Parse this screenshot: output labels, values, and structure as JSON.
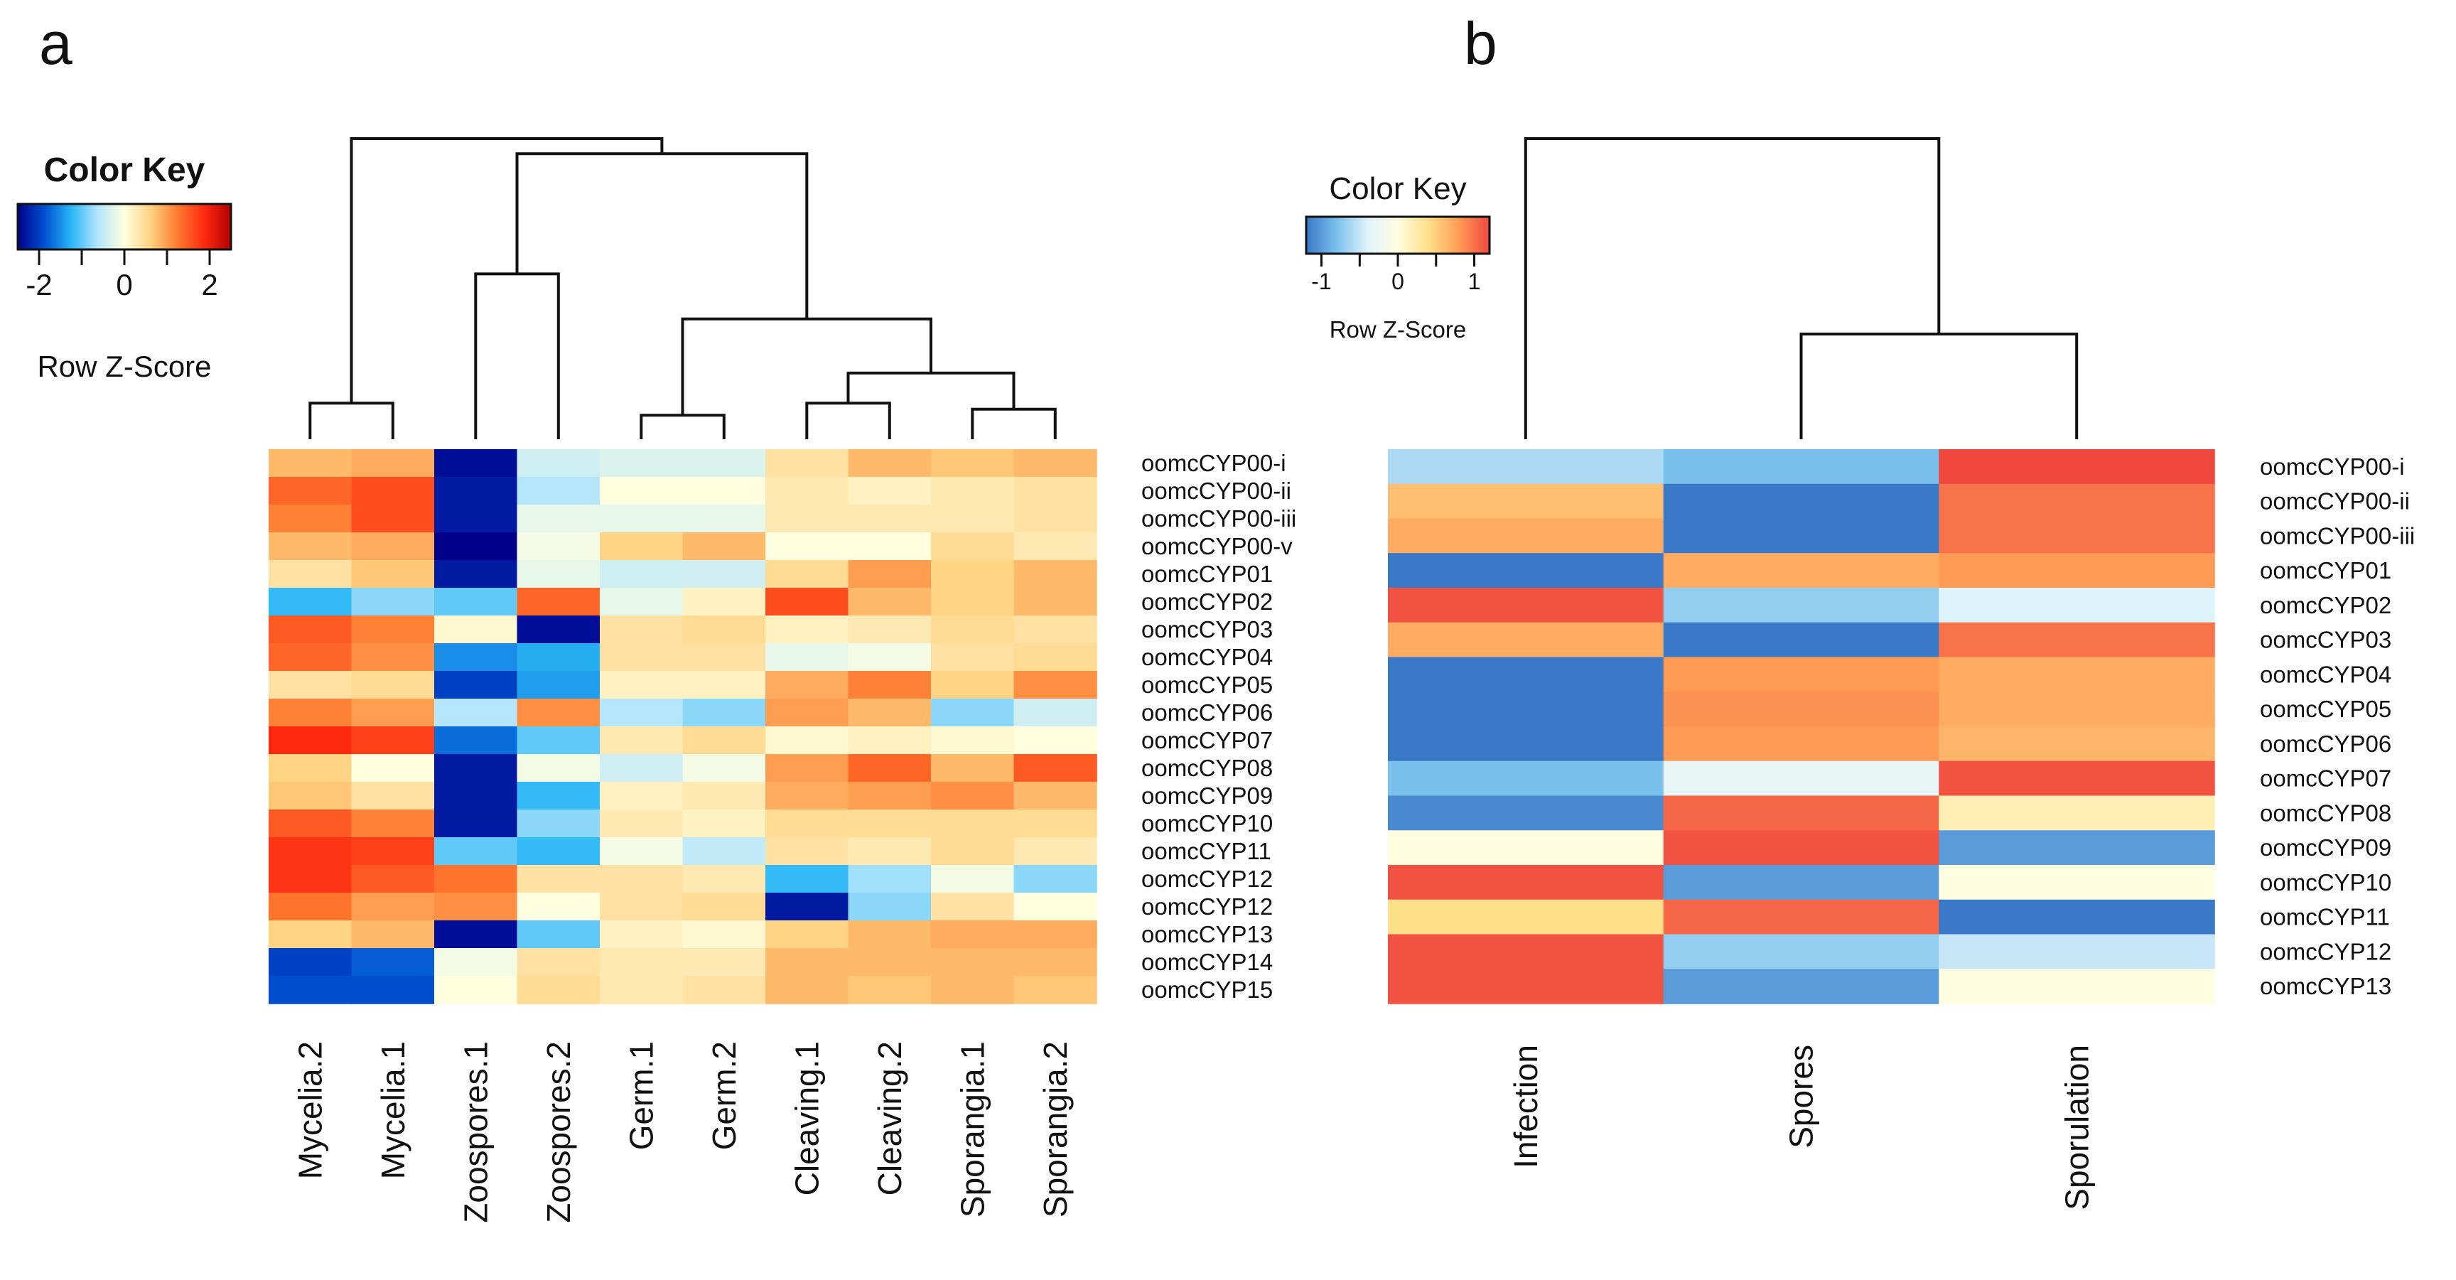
{
  "chart_data": [
    {
      "panel": "a",
      "type": "heatmap",
      "color_key": {
        "title": "Color Key",
        "xlabel": "Row Z-Score",
        "ticks": [
          "-2",
          "0",
          "2"
        ],
        "tick_values": [
          -2,
          0,
          2
        ],
        "range": [
          -2.5,
          2.5
        ],
        "colors": [
          "#00008b",
          "#0050d0",
          "#29b6f6",
          "#b3e5fc",
          "#ffffe0",
          "#ffd280",
          "#ff7a30",
          "#ff2a10",
          "#b00000"
        ]
      },
      "columns": [
        "Mycelia.2",
        "Mycelia.1",
        "Zoospores.1",
        "Zoospores.2",
        "Germ.1",
        "Germ.2",
        "Cleaving.1",
        "Cleaving.2",
        "Sporangia.1",
        "Sporangia.2"
      ],
      "rows": [
        "oomcCYP00-i",
        "oomcCYP00-ii",
        "oomcCYP00-iii",
        "oomcCYP00-v",
        "oomcCYP01",
        "oomcCYP02",
        "oomcCYP03",
        "oomcCYP04",
        "oomcCYP05",
        "oomcCYP06",
        "oomcCYP07",
        "oomcCYP08",
        "oomcCYP09",
        "oomcCYP10",
        "oomcCYP11",
        "oomcCYP12",
        "oomcCYP12",
        "oomcCYP13",
        "oomcCYP14",
        "oomcCYP15"
      ],
      "values": [
        [
          0.8,
          0.9,
          -2.4,
          -0.4,
          -0.3,
          -0.3,
          0.4,
          0.8,
          0.7,
          0.8
        ],
        [
          1.4,
          1.6,
          -2.3,
          -0.6,
          0.0,
          0.0,
          0.3,
          0.2,
          0.3,
          0.4
        ],
        [
          1.2,
          1.6,
          -2.3,
          -0.2,
          -0.2,
          -0.2,
          0.3,
          0.3,
          0.3,
          0.4
        ],
        [
          0.8,
          0.9,
          -2.5,
          -0.1,
          0.6,
          0.8,
          0.0,
          0.0,
          0.5,
          0.3
        ],
        [
          0.4,
          0.7,
          -2.3,
          -0.2,
          -0.4,
          -0.4,
          0.5,
          1.0,
          0.6,
          0.8
        ],
        [
          -1.2,
          -0.8,
          -1.0,
          1.4,
          -0.2,
          0.2,
          1.6,
          0.8,
          0.6,
          0.8
        ],
        [
          1.5,
          1.2,
          0.1,
          -2.4,
          0.4,
          0.5,
          0.2,
          0.3,
          0.5,
          0.4
        ],
        [
          1.4,
          1.1,
          -1.5,
          -1.3,
          0.4,
          0.4,
          -0.2,
          -0.1,
          0.4,
          0.5
        ],
        [
          0.4,
          0.5,
          -2.0,
          -1.4,
          0.2,
          0.2,
          0.9,
          1.2,
          0.6,
          1.1
        ],
        [
          1.2,
          1.0,
          -0.6,
          1.1,
          -0.6,
          -0.8,
          1.0,
          0.8,
          -0.8,
          -0.4
        ],
        [
          1.9,
          1.7,
          -1.7,
          -1.0,
          0.3,
          0.5,
          0.1,
          0.2,
          0.1,
          0.0
        ],
        [
          0.6,
          0.0,
          -2.3,
          -0.1,
          -0.4,
          -0.1,
          1.0,
          1.4,
          0.8,
          1.5
        ],
        [
          0.7,
          0.4,
          -2.3,
          -1.2,
          0.2,
          0.3,
          0.9,
          1.0,
          1.1,
          0.8
        ],
        [
          1.5,
          1.2,
          -2.3,
          -0.8,
          0.3,
          0.2,
          0.5,
          0.5,
          0.5,
          0.5
        ],
        [
          1.8,
          1.7,
          -1.0,
          -1.2,
          -0.1,
          -0.5,
          0.4,
          0.3,
          0.5,
          0.3
        ],
        [
          1.8,
          1.5,
          1.3,
          0.4,
          0.4,
          0.3,
          -1.2,
          -0.7,
          -0.1,
          -0.8
        ],
        [
          1.3,
          1.0,
          1.1,
          0.0,
          0.4,
          0.5,
          -2.3,
          -0.8,
          0.4,
          0.0
        ],
        [
          0.6,
          0.8,
          -2.4,
          -1.0,
          0.2,
          0.1,
          0.6,
          0.8,
          0.9,
          0.9
        ],
        [
          -2.0,
          -1.8,
          -0.1,
          0.4,
          0.3,
          0.3,
          0.8,
          0.8,
          0.8,
          0.8
        ],
        [
          -1.9,
          -1.9,
          0.0,
          0.5,
          0.3,
          0.4,
          0.8,
          0.7,
          0.8,
          0.7
        ]
      ],
      "dendrogram": {
        "leaf_order": [
          "Mycelia.2",
          "Mycelia.1",
          "Zoospores.1",
          "Zoospores.2",
          "Germ.1",
          "Germ.2",
          "Cleaving.1",
          "Cleaving.2",
          "Sporangia.1",
          "Sporangia.2"
        ],
        "merges": [
          {
            "a": 0,
            "b": 1,
            "height": 0.12
          },
          {
            "a": 2,
            "b": 3,
            "height": 0.55
          },
          {
            "a": 4,
            "b": 5,
            "height": 0.08
          },
          {
            "a": 6,
            "b": 7,
            "height": 0.12
          },
          {
            "a": 8,
            "b": 9,
            "height": 0.1
          },
          {
            "a": 13,
            "b": 14,
            "height": 0.22
          },
          {
            "a": 12,
            "b": 15,
            "height": 0.4
          },
          {
            "a": 11,
            "b": 16,
            "height": 0.95
          },
          {
            "a": 10,
            "b": 17,
            "height": 1.0
          }
        ]
      }
    },
    {
      "panel": "b",
      "type": "heatmap",
      "color_key": {
        "title": "Color Key",
        "xlabel": "Row Z-Score",
        "ticks": [
          "-1",
          "0",
          "1"
        ],
        "tick_values": [
          -1,
          0,
          1
        ],
        "range": [
          -1.2,
          1.2
        ],
        "colors": [
          "#3a78c8",
          "#79c0ec",
          "#dff3fb",
          "#fffde0",
          "#ffe08a",
          "#ff9b55",
          "#f0483e"
        ]
      },
      "columns": [
        "Infection",
        "Spores",
        "Sporulation"
      ],
      "rows": [
        "oomcCYP00-i",
        "oomcCYP00-ii",
        "oomcCYP00-iii",
        "oomcCYP01",
        "oomcCYP02",
        "oomcCYP03",
        "oomcCYP04",
        "oomcCYP05",
        "oomcCYP06",
        "oomcCYP07",
        "oomcCYP08",
        "oomcCYP09",
        "oomcCYP10",
        "oomcCYP11",
        "oomcCYP12",
        "oomcCYP13"
      ],
      "values": [
        [
          -0.6,
          -0.8,
          1.2
        ],
        [
          0.6,
          -1.2,
          1.0
        ],
        [
          0.7,
          -1.2,
          1.0
        ],
        [
          -1.2,
          0.7,
          0.8
        ],
        [
          1.15,
          -0.7,
          -0.4
        ],
        [
          0.7,
          -1.2,
          1.0
        ],
        [
          -1.2,
          0.8,
          0.7
        ],
        [
          -1.2,
          0.85,
          0.7
        ],
        [
          -1.2,
          0.8,
          0.65
        ],
        [
          -0.8,
          -0.3,
          1.15
        ],
        [
          -1.1,
          1.05,
          0.2
        ],
        [
          0.0,
          1.15,
          -1.0
        ],
        [
          1.15,
          -1.0,
          0.0
        ],
        [
          0.4,
          1.05,
          -1.2
        ],
        [
          1.15,
          -0.7,
          -0.5
        ],
        [
          1.15,
          -1.0,
          0.0
        ]
      ],
      "dendrogram": {
        "leaf_order": [
          "Infection",
          "Spores",
          "Sporulation"
        ],
        "merges": [
          {
            "a": 1,
            "b": 2,
            "height": 0.35
          },
          {
            "a": 0,
            "b": 3,
            "height": 1.0
          }
        ]
      }
    }
  ],
  "panel_labels": {
    "a": "a",
    "b": "b"
  }
}
